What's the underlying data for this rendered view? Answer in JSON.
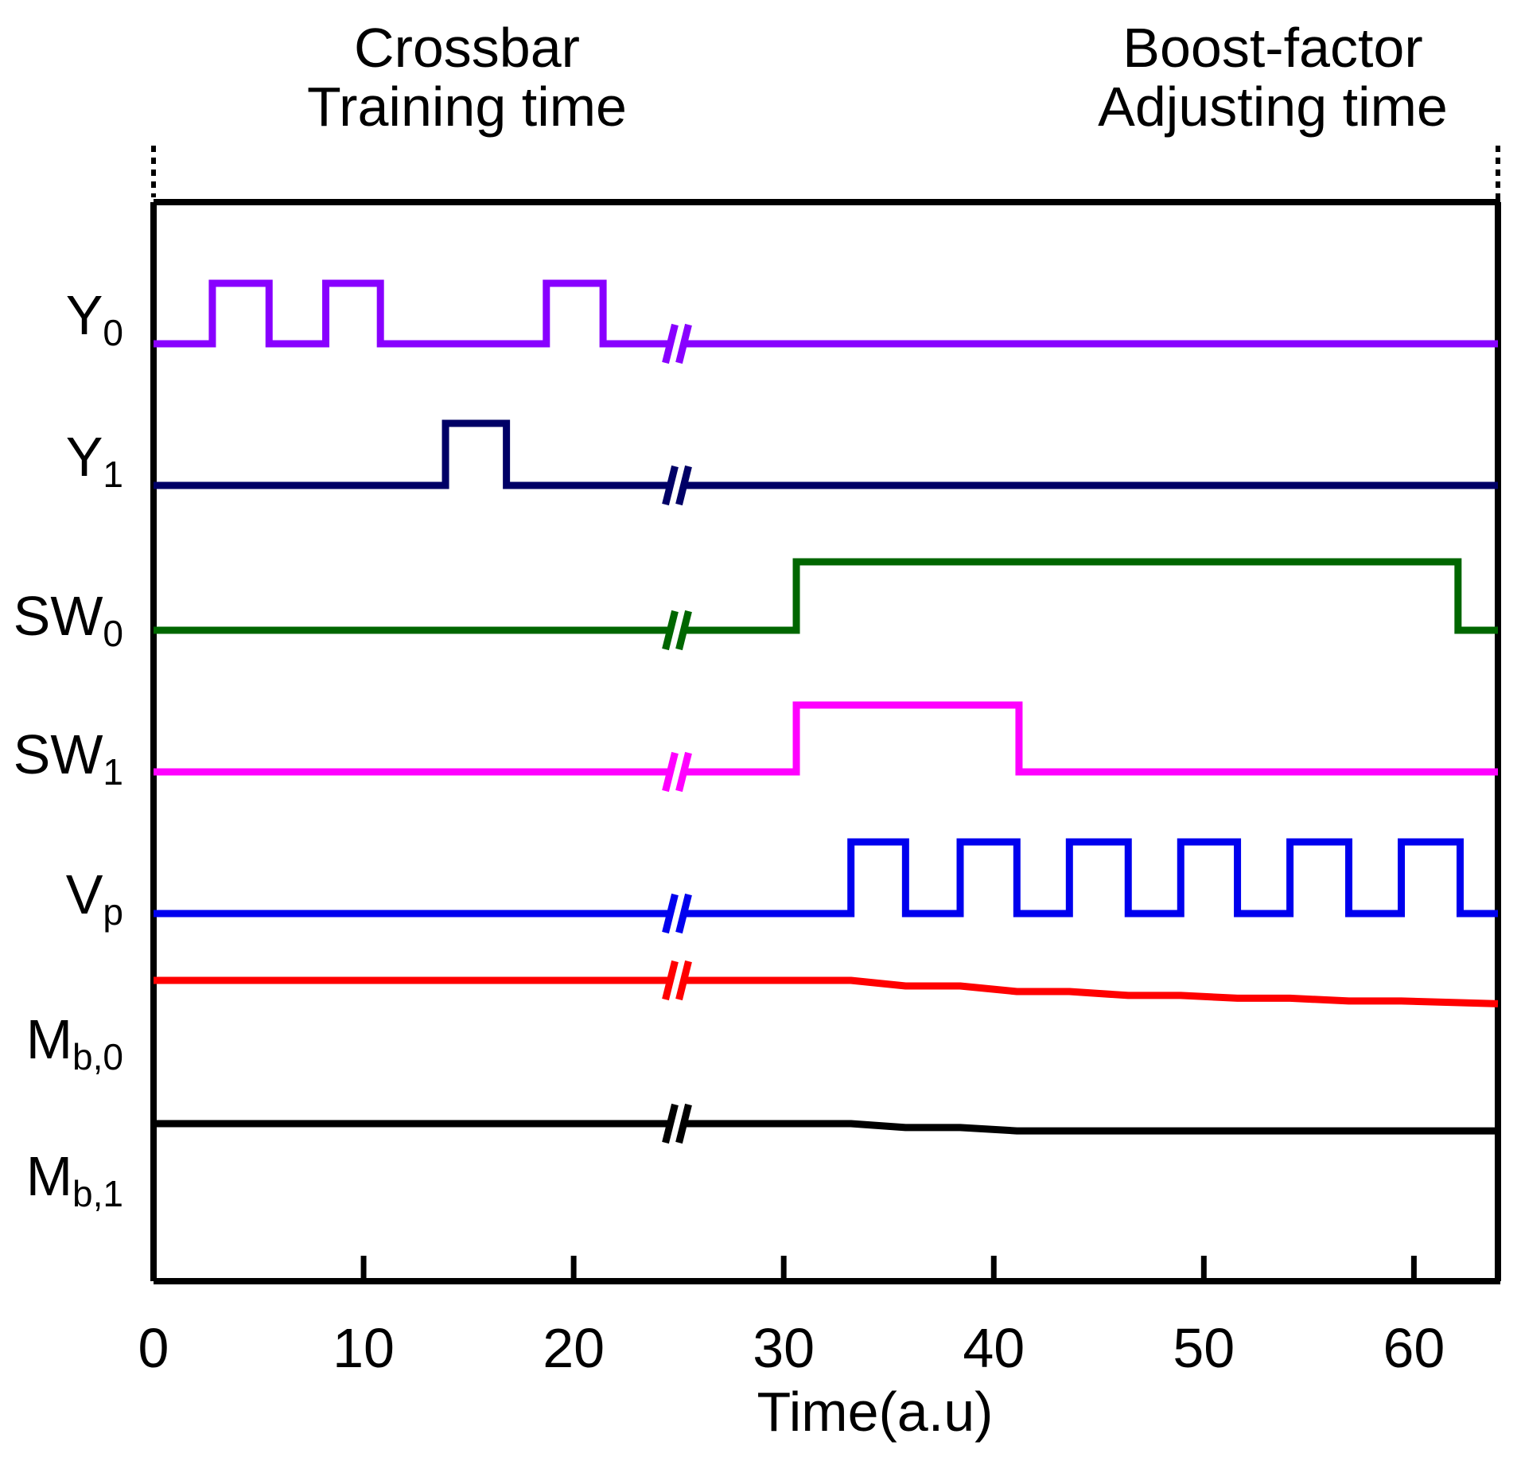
{
  "chart_data": {
    "type": "line",
    "subtype": "timing-diagram",
    "headers": {
      "left": [
        "Crossbar",
        "Training time"
      ],
      "right": [
        "Boost-factor",
        "Adjusting time"
      ]
    },
    "xlabel": "Time(a.u)",
    "xlim": [
      0,
      64
    ],
    "xticks": [
      0,
      10,
      20,
      30,
      40,
      50,
      60
    ],
    "axis_break_at": 24.9,
    "signals": [
      {
        "id": "Y0",
        "main": "Y",
        "sub": "0",
        "color": "#8800ff",
        "kind": "digital",
        "high": [
          [
            2.8,
            5.5
          ],
          [
            8.2,
            10.8
          ],
          [
            18.7,
            21.4
          ]
        ]
      },
      {
        "id": "Y1",
        "main": "Y",
        "sub": "1",
        "color": "#000066",
        "kind": "digital",
        "high": [
          [
            13.9,
            16.8
          ]
        ]
      },
      {
        "id": "SW0",
        "main": "SW",
        "sub": "0",
        "color": "#006600",
        "kind": "digital",
        "high": [
          [
            30.6,
            62.1
          ]
        ]
      },
      {
        "id": "SW1",
        "main": "SW",
        "sub": "1",
        "color": "#ff00ff",
        "kind": "digital",
        "high": [
          [
            30.6,
            41.2
          ]
        ]
      },
      {
        "id": "Vp",
        "main": "V",
        "sub": "p",
        "color": "#0000ee",
        "kind": "digital",
        "high": [
          [
            33.2,
            35.8
          ],
          [
            38.4,
            41.1
          ],
          [
            43.6,
            46.4
          ],
          [
            48.9,
            51.6
          ],
          [
            54.1,
            56.9
          ],
          [
            59.4,
            62.2
          ]
        ]
      },
      {
        "id": "Mb0",
        "main": "M",
        "sub": "b,0",
        "color": "#ff0000",
        "kind": "analog",
        "x": [
          0,
          33.2,
          35.8,
          38.4,
          41.1,
          43.6,
          46.4,
          48.9,
          51.6,
          54.1,
          56.9,
          59.4,
          62.2,
          64
        ],
        "y": [
          0,
          0,
          -0.1,
          -0.1,
          -0.2,
          -0.2,
          -0.27,
          -0.27,
          -0.32,
          -0.32,
          -0.37,
          -0.37,
          -0.4,
          -0.42
        ]
      },
      {
        "id": "Mb1",
        "main": "M",
        "sub": "b,1",
        "color": "#000000",
        "kind": "analog",
        "x": [
          0,
          33.2,
          35.8,
          38.4,
          41.1,
          64
        ],
        "y": [
          0,
          0,
          -0.07,
          -0.07,
          -0.13,
          -0.13
        ]
      }
    ]
  }
}
